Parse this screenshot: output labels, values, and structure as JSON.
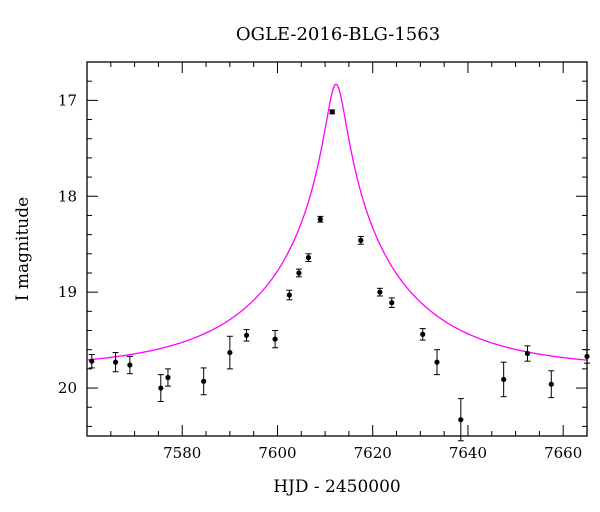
{
  "chart_data": {
    "type": "scatter",
    "title": "OGLE-2016-BLG-1563",
    "xlabel": "HJD - 2450000",
    "ylabel": "I magnitude",
    "xlim": [
      7560,
      7665
    ],
    "ylim": [
      20.5,
      16.6
    ],
    "y_inverted": true,
    "x_ticks": [
      7580,
      7600,
      7620,
      7640,
      7660
    ],
    "x_tick_labels": [
      "7580",
      "7600",
      "7620",
      "7640",
      "7660"
    ],
    "y_ticks": [
      17,
      18,
      19,
      20
    ],
    "y_tick_labels": [
      "17",
      "18",
      "19",
      "20"
    ],
    "grid": false,
    "colors": {
      "data": "#000000",
      "model": "#ff00ff"
    },
    "model": {
      "t0": 7612.3,
      "tE": 30,
      "u0": 0.065,
      "baseline_mag": 19.8
    },
    "series": [
      {
        "points": [
          {
            "x": 7561,
            "y": 19.72,
            "err": 0.07
          },
          {
            "x": 7566,
            "y": 19.73,
            "err": 0.1
          },
          {
            "x": 7569,
            "y": 19.76,
            "err": 0.09
          },
          {
            "x": 7575.5,
            "y": 20.0,
            "err": 0.14
          },
          {
            "x": 7577,
            "y": 19.89,
            "err": 0.09
          },
          {
            "x": 7584.5,
            "y": 19.93,
            "err": 0.14
          },
          {
            "x": 7590,
            "y": 19.63,
            "err": 0.17
          },
          {
            "x": 7593.5,
            "y": 19.45,
            "err": 0.06
          },
          {
            "x": 7599.5,
            "y": 19.49,
            "err": 0.09
          },
          {
            "x": 7602.5,
            "y": 19.03,
            "err": 0.05
          },
          {
            "x": 7604.5,
            "y": 18.8,
            "err": 0.04
          },
          {
            "x": 7606.5,
            "y": 18.64,
            "err": 0.04
          },
          {
            "x": 7609,
            "y": 18.24,
            "err": 0.03
          },
          {
            "x": 7611.5,
            "y": 17.12,
            "err": 0.02
          },
          {
            "x": 7617.5,
            "y": 18.46,
            "err": 0.04
          },
          {
            "x": 7621.5,
            "y": 19.0,
            "err": 0.04
          },
          {
            "x": 7624,
            "y": 19.11,
            "err": 0.05
          },
          {
            "x": 7630.5,
            "y": 19.44,
            "err": 0.06
          },
          {
            "x": 7633.5,
            "y": 19.73,
            "err": 0.13
          },
          {
            "x": 7638.5,
            "y": 20.33,
            "err": 0.22
          },
          {
            "x": 7647.5,
            "y": 19.91,
            "err": 0.18
          },
          {
            "x": 7652.5,
            "y": 19.64,
            "err": 0.08
          },
          {
            "x": 7657.5,
            "y": 19.96,
            "err": 0.14
          },
          {
            "x": 7665,
            "y": 19.67,
            "err": 0.07
          }
        ]
      }
    ]
  }
}
